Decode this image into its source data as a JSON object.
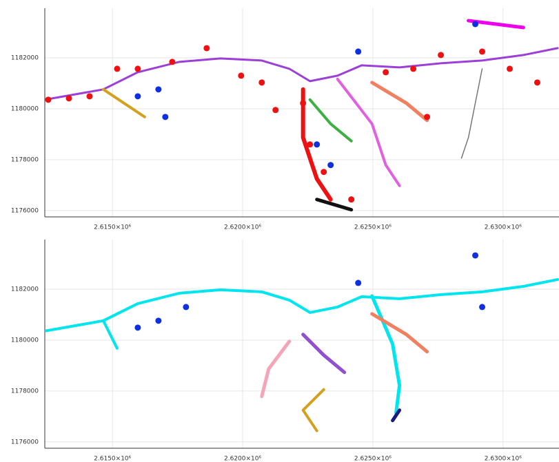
{
  "chart_data": [
    {
      "type": "map-plot",
      "xlim": [
        2612400,
        2632150
      ],
      "ylim": [
        1175750,
        1183950
      ],
      "xticks": [
        {
          "value": 2615000,
          "label": "2.6150×10⁶"
        },
        {
          "value": 2620000,
          "label": "2.6200×10⁶"
        },
        {
          "value": 2625000,
          "label": "2.6250×10⁶"
        },
        {
          "value": 2630000,
          "label": "2.6300×10⁶"
        }
      ],
      "yticks": [
        1176000,
        1178000,
        1180000,
        1182000
      ],
      "grid": true,
      "series": [
        {
          "mode": "line",
          "color": "#9b3fd6",
          "width": 3,
          "x": [
            2612400,
            2614649,
            2615971,
            2617559,
            2619146,
            2620733,
            2621792,
            2622585,
            2623644,
            2624570,
            2626024,
            2627612,
            2629199,
            2630786,
            2632100
          ],
          "y": [
            1180356,
            1180761,
            1181436,
            1181842,
            1181977,
            1181896,
            1181572,
            1181085,
            1181301,
            1181707,
            1181626,
            1181788,
            1181896,
            1182112,
            1182382
          ]
        },
        {
          "mode": "line",
          "color": "#e060e0",
          "width": 4,
          "x": [
            2623644,
            2624967,
            2625496,
            2626025
          ],
          "y": [
            1181166,
            1179409,
            1177787,
            1176976
          ]
        },
        {
          "mode": "line",
          "color": "#3cb043",
          "width": 4,
          "x": [
            2622585,
            2623379,
            2624173
          ],
          "y": [
            1180355,
            1179409,
            1178733
          ]
        },
        {
          "mode": "line",
          "color": "#f08060",
          "width": 5,
          "x": [
            2624967,
            2626289,
            2627082
          ],
          "y": [
            1181031,
            1180220,
            1179544
          ]
        },
        {
          "mode": "line",
          "color": "#ee1111",
          "width": 6,
          "x": [
            2622320,
            2622320,
            2622849,
            2623379
          ],
          "y": [
            1180761,
            1178868,
            1177246,
            1176436
          ]
        },
        {
          "mode": "line",
          "color": "#d4a020",
          "width": 4,
          "x": [
            2614649,
            2615442,
            2616236
          ],
          "y": [
            1180761,
            1180220,
            1179679
          ]
        },
        {
          "mode": "line",
          "color": "#ee00ee",
          "width": 5,
          "x": [
            2628670,
            2629728,
            2630786
          ],
          "y": [
            1183463,
            1183328,
            1183193
          ]
        },
        {
          "mode": "line",
          "color": "#111111",
          "width": 5,
          "x": [
            2622849,
            2624173
          ],
          "y": [
            1176436,
            1176031
          ]
        },
        {
          "mode": "line",
          "color": "#777777",
          "width": 1.5,
          "x": [
            2629199,
            2628670,
            2628405
          ],
          "y": [
            1181572,
            1178868,
            1178057
          ]
        },
        {
          "mode": "markers",
          "color": "#ee1111",
          "size": 4.5,
          "x": [
            2612532,
            2613326,
            2614120,
            2615178,
            2615971,
            2617294,
            2618617,
            2619940,
            2620733,
            2621262,
            2622320,
            2622585,
            2623114,
            2624173,
            2625495,
            2626553,
            2627612,
            2629199,
            2630257,
            2631315,
            2627082
          ],
          "y": [
            1180355,
            1180409,
            1180490,
            1181571,
            1181571,
            1181842,
            1182382,
            1181301,
            1181031,
            1179950,
            1180220,
            1178598,
            1177517,
            1176436,
            1181436,
            1181571,
            1182112,
            1182247,
            1181571,
            1181031,
            1179679
          ]
        },
        {
          "mode": "markers",
          "color": "#1030e0",
          "size": 4.5,
          "x": [
            2615971,
            2616765,
            2624438,
            2628935,
            2622849,
            2623379,
            2617029
          ],
          "y": [
            1180490,
            1180761,
            1182247,
            1183328,
            1178598,
            1177787,
            1179679
          ]
        }
      ]
    },
    {
      "type": "map-plot",
      "xlim": [
        2612400,
        2632150
      ],
      "ylim": [
        1175750,
        1183950
      ],
      "xticks": [
        {
          "value": 2615000,
          "label": "2.6150×10⁶"
        },
        {
          "value": 2620000,
          "label": "2.6200×10⁶"
        },
        {
          "value": 2625000,
          "label": "2.6250×10⁶"
        },
        {
          "value": 2630000,
          "label": "2.6300×10⁶"
        }
      ],
      "yticks": [
        1176000,
        1178000,
        1180000,
        1182000
      ],
      "grid": true,
      "series": [
        {
          "mode": "line",
          "color": "#00e5ee",
          "width": 4,
          "x": [
            2612400,
            2614649,
            2615971,
            2617559,
            2619146,
            2620733,
            2621792,
            2622585,
            2623644,
            2624570,
            2626024,
            2627612,
            2629199,
            2630786,
            2632100
          ],
          "y": [
            1180356,
            1180761,
            1181436,
            1181842,
            1181977,
            1181896,
            1181572,
            1181085,
            1181301,
            1181707,
            1181626,
            1181788,
            1181896,
            1182112,
            1182382
          ]
        },
        {
          "mode": "line",
          "color": "#00e5ee",
          "width": 5,
          "x": [
            2624967,
            2625760,
            2626025,
            2625892
          ],
          "y": [
            1181734,
            1179841,
            1178219,
            1177138
          ]
        },
        {
          "mode": "line",
          "color": "#00e5ee",
          "width": 4,
          "x": [
            2614649,
            2615178
          ],
          "y": [
            1180761,
            1179679
          ]
        },
        {
          "mode": "line",
          "color": "#9050d0",
          "width": 5,
          "x": [
            2622320,
            2623114,
            2623908
          ],
          "y": [
            1180220,
            1179409,
            1178733
          ]
        },
        {
          "mode": "line",
          "color": "#f08060",
          "width": 5,
          "x": [
            2624967,
            2626289,
            2627082
          ],
          "y": [
            1181031,
            1180220,
            1179544
          ]
        },
        {
          "mode": "line",
          "color": "#f4a6b8",
          "width": 5,
          "x": [
            2621792,
            2620998,
            2620733
          ],
          "y": [
            1179950,
            1178868,
            1177787
          ]
        },
        {
          "mode": "line",
          "color": "#d4a020",
          "width": 4,
          "x": [
            2623114,
            2622320,
            2622849
          ],
          "y": [
            1178057,
            1177246,
            1176436
          ]
        },
        {
          "mode": "line",
          "color": "#1a1a80",
          "width": 5,
          "x": [
            2626025,
            2625760
          ],
          "y": [
            1177246,
            1176841
          ]
        },
        {
          "mode": "markers",
          "color": "#1030e0",
          "size": 4.5,
          "x": [
            2624438,
            2628935,
            2615971,
            2616765,
            2617823,
            2629199
          ],
          "y": [
            1182247,
            1183328,
            1180490,
            1180761,
            1181301,
            1181301
          ]
        }
      ]
    }
  ]
}
